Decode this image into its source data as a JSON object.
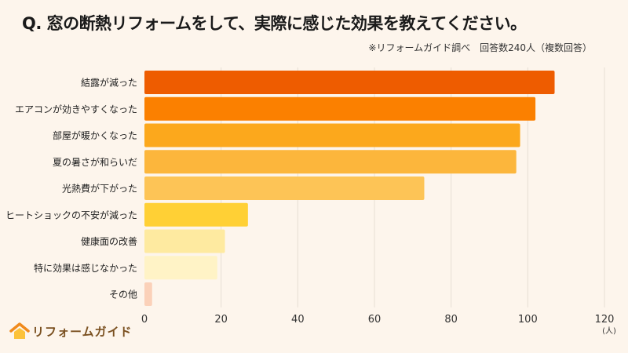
{
  "title": "Q.  窓の断熱リフォームをして、実際に感じた効果を教えてください。",
  "note": "※リフォームガイド調べ　回答数240人（複数回答）",
  "logo": {
    "text": "リフォームガイド",
    "icon": "house-icon"
  },
  "chart_data": {
    "type": "bar",
    "orientation": "horizontal",
    "categories": [
      "結露が減った",
      "エアコンが効きやすくなった",
      "部屋が暖かくなった",
      "夏の暑さが和らいだ",
      "光熱費が下がった",
      "ヒートショックの不安が減った",
      "健康面の改善",
      "特に効果は感じなかった",
      "その他"
    ],
    "values": [
      107,
      102,
      98,
      97,
      73,
      27,
      21,
      19,
      2
    ],
    "colors": [
      "#ee5c00",
      "#fb8000",
      "#fca81c",
      "#fcb63c",
      "#fdc456",
      "#ffd035",
      "#feeaa0",
      "#fff3c6",
      "#fbd1b9"
    ],
    "xlim": [
      0,
      120
    ],
    "xticks": [
      0,
      20,
      40,
      60,
      80,
      100,
      120
    ],
    "xunit": "(人)",
    "grid": true
  }
}
